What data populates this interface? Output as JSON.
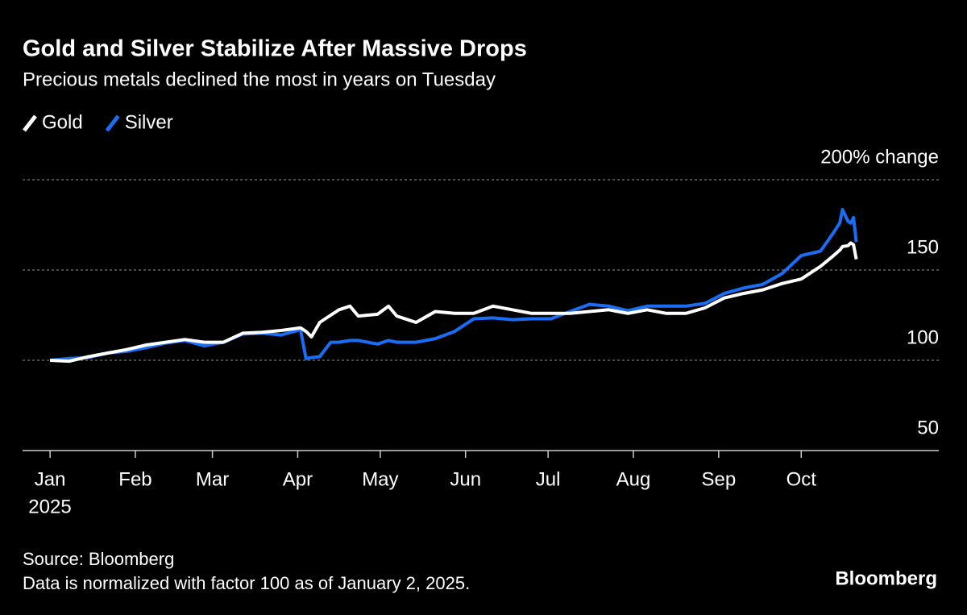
{
  "chart_data": {
    "type": "line",
    "title": "Gold and Silver Stabilize After Massive Drops",
    "subtitle": "Precious metals declined the most in years on Tuesday",
    "x": [
      1,
      8,
      15,
      22,
      29,
      36,
      43,
      50,
      57,
      64,
      71,
      78,
      85,
      92,
      94,
      96,
      99,
      103,
      106,
      110,
      113,
      120,
      124,
      127,
      134,
      141,
      148,
      155,
      162,
      169,
      176,
      183,
      190,
      197,
      204,
      211,
      218,
      225,
      232,
      239,
      246,
      253,
      260,
      267,
      274,
      281,
      285,
      288,
      289,
      291,
      292,
      293,
      294
    ],
    "xlim": [
      -9,
      324
    ],
    "xticks": [
      {
        "value": 1,
        "label": "Jan"
      },
      {
        "value": 32,
        "label": "Feb"
      },
      {
        "value": 60,
        "label": "Mar"
      },
      {
        "value": 91,
        "label": "Apr"
      },
      {
        "value": 121,
        "label": "May"
      },
      {
        "value": 152,
        "label": "Jun"
      },
      {
        "value": 182,
        "label": "Jul"
      },
      {
        "value": 213,
        "label": "Aug"
      },
      {
        "value": 244,
        "label": "Sep"
      },
      {
        "value": 274,
        "label": "Oct"
      }
    ],
    "x_year_label": "2025",
    "ylim": [
      50,
      200
    ],
    "yticks": [
      50,
      100,
      150,
      {
        "value": 200,
        "label": "200% change"
      }
    ],
    "grid": true,
    "series": [
      {
        "name": "Gold",
        "color": "#ffffff",
        "values": [
          100,
          99.5,
          102,
          104,
          106,
          108.5,
          110,
          111.5,
          110,
          110,
          115,
          115.5,
          116.5,
          118,
          116,
          113,
          121,
          125,
          128,
          130,
          124.5,
          125.5,
          130,
          124.5,
          121,
          127,
          126,
          126,
          130,
          128,
          126,
          126,
          126,
          127,
          128,
          126,
          128,
          126,
          126,
          129,
          134.5,
          137,
          139,
          142.5,
          145,
          152,
          157,
          161,
          163,
          163.5,
          165,
          164,
          156
        ]
      },
      {
        "name": "Silver",
        "color": "#1a6ef5",
        "values": [
          100,
          101,
          101.5,
          104,
          105,
          107,
          109.5,
          111,
          108,
          110,
          114.5,
          115,
          114,
          117,
          101,
          101.5,
          102,
          110,
          110,
          111,
          111,
          109,
          111,
          110,
          110,
          112,
          116,
          123,
          123.5,
          122.5,
          123,
          123,
          127,
          131,
          130,
          127.5,
          130,
          130,
          130,
          131.5,
          137,
          140,
          142,
          148,
          158,
          160.5,
          169,
          176,
          183.5,
          177,
          176,
          179,
          165.5
        ]
      }
    ],
    "source": "Source: Bloomberg",
    "note": "Data is normalized with factor 100 as of January 2, 2025.",
    "logo": "Bloomberg"
  }
}
